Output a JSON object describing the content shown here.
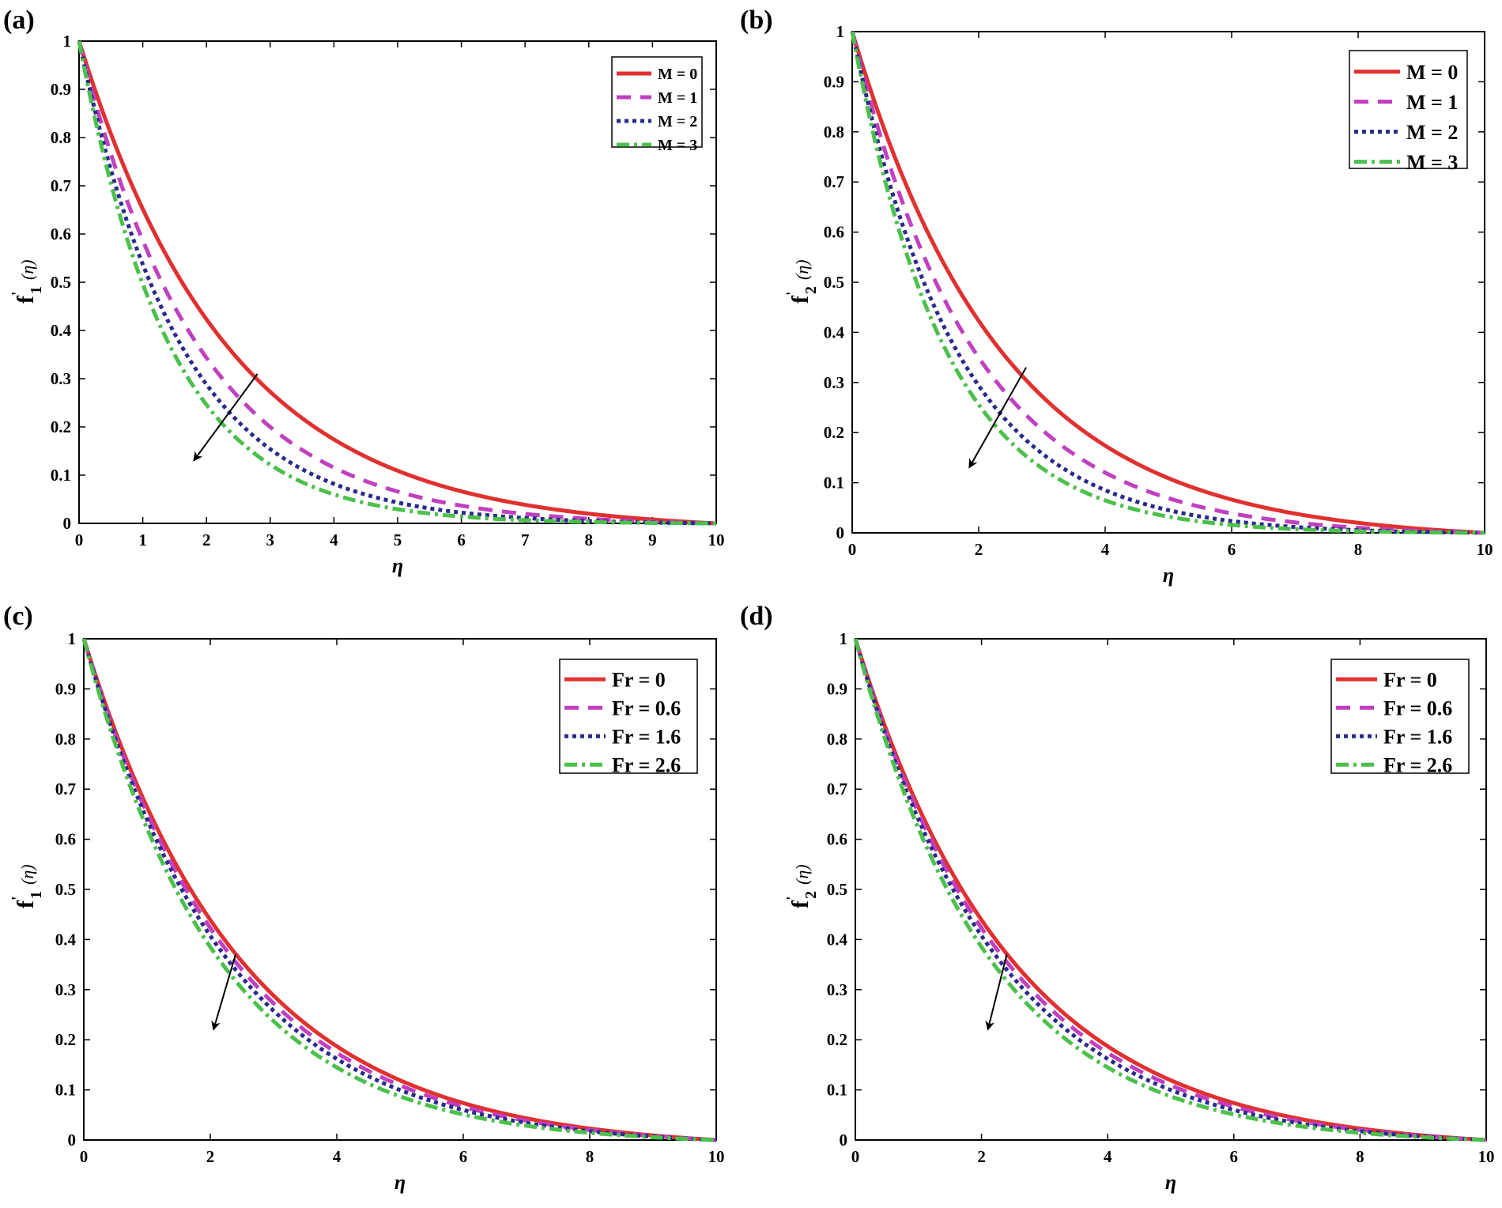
{
  "colors": {
    "series": [
      "#e03030",
      "#c040c0",
      "#2a2a8c",
      "#4cc04c"
    ],
    "axes": "#000000",
    "background": "#ffffff"
  },
  "chart_data": [
    {
      "panel_label": "(a)",
      "type": "line",
      "xlabel": "η",
      "ylabel": {
        "main": "f",
        "prime": "'",
        "sub": "1",
        "arg": "(η)"
      },
      "xlim": [
        0,
        10
      ],
      "ylim": [
        0,
        1
      ],
      "xticks": [
        0,
        1,
        2,
        3,
        4,
        5,
        6,
        7,
        8,
        9,
        10
      ],
      "yticks": [
        0,
        0.1,
        0.2,
        0.3,
        0.4,
        0.5,
        0.6,
        0.7,
        0.8,
        0.9,
        1
      ],
      "legend_position": "top-right",
      "series": [
        {
          "name": "M = 0",
          "style": "solid",
          "decay": 0.42
        },
        {
          "name": "M = 1",
          "style": "dashed",
          "decay": 0.53
        },
        {
          "name": "M = 2",
          "style": "dotted",
          "decay": 0.62
        },
        {
          "name": "M = 3",
          "style": "dash-dot",
          "decay": 0.7
        }
      ],
      "annotation": {
        "type": "arrow",
        "from": [
          2.8,
          0.31
        ],
        "to": [
          1.8,
          0.13
        ]
      }
    },
    {
      "panel_label": "(b)",
      "type": "line",
      "xlabel": "η",
      "ylabel": {
        "main": "f",
        "prime": "'",
        "sub": "2",
        "arg": "(η)"
      },
      "xlim": [
        0,
        10
      ],
      "ylim": [
        0,
        1
      ],
      "xticks": [
        0,
        2,
        4,
        6,
        8,
        10
      ],
      "yticks": [
        0,
        0.1,
        0.2,
        0.3,
        0.4,
        0.5,
        0.6,
        0.7,
        0.8,
        0.9,
        1
      ],
      "legend_position": "top-right",
      "series": [
        {
          "name": "M = 0",
          "style": "solid",
          "decay": 0.42
        },
        {
          "name": "M = 1",
          "style": "dashed",
          "decay": 0.52
        },
        {
          "name": "M = 2",
          "style": "dotted",
          "decay": 0.61
        },
        {
          "name": "M = 3",
          "style": "dash-dot",
          "decay": 0.68
        }
      ],
      "annotation": {
        "type": "arrow",
        "from": [
          2.75,
          0.33
        ],
        "to": [
          1.85,
          0.13
        ]
      }
    },
    {
      "panel_label": "(c)",
      "type": "line",
      "xlabel": "η",
      "ylabel": {
        "main": "f",
        "prime": "'",
        "sub": "1",
        "arg": "(η)"
      },
      "xlim": [
        0,
        10
      ],
      "ylim": [
        0,
        1
      ],
      "xticks": [
        0,
        2,
        4,
        6,
        8,
        10
      ],
      "yticks": [
        0,
        0.1,
        0.2,
        0.3,
        0.4,
        0.5,
        0.6,
        0.7,
        0.8,
        0.9,
        1
      ],
      "legend_position": "top-right",
      "series": [
        {
          "name": "Fr = 0",
          "style": "solid",
          "decay": 0.4
        },
        {
          "name": "Fr = 0.6",
          "style": "dashed",
          "decay": 0.42
        },
        {
          "name": "Fr = 1.6",
          "style": "dotted",
          "decay": 0.44
        },
        {
          "name": "Fr = 2.6",
          "style": "dash-dot",
          "decay": 0.47
        }
      ],
      "annotation": {
        "type": "arrow",
        "from": [
          2.4,
          0.37
        ],
        "to": [
          2.05,
          0.22
        ]
      }
    },
    {
      "panel_label": "(d)",
      "type": "line",
      "xlabel": "η",
      "ylabel": {
        "main": "f",
        "prime": "'",
        "sub": "2",
        "arg": "(η)"
      },
      "xlim": [
        0,
        10
      ],
      "ylim": [
        0,
        1
      ],
      "xticks": [
        0,
        2,
        4,
        6,
        8,
        10
      ],
      "yticks": [
        0,
        0.1,
        0.2,
        0.3,
        0.4,
        0.5,
        0.6,
        0.7,
        0.8,
        0.9,
        1
      ],
      "legend_position": "top-right",
      "series": [
        {
          "name": "Fr = 0",
          "style": "solid",
          "decay": 0.4
        },
        {
          "name": "Fr = 0.6",
          "style": "dashed",
          "decay": 0.42
        },
        {
          "name": "Fr = 1.6",
          "style": "dotted",
          "decay": 0.44
        },
        {
          "name": "Fr = 2.6",
          "style": "dash-dot",
          "decay": 0.47
        }
      ],
      "annotation": {
        "type": "arrow",
        "from": [
          2.4,
          0.37
        ],
        "to": [
          2.1,
          0.22
        ]
      }
    }
  ]
}
